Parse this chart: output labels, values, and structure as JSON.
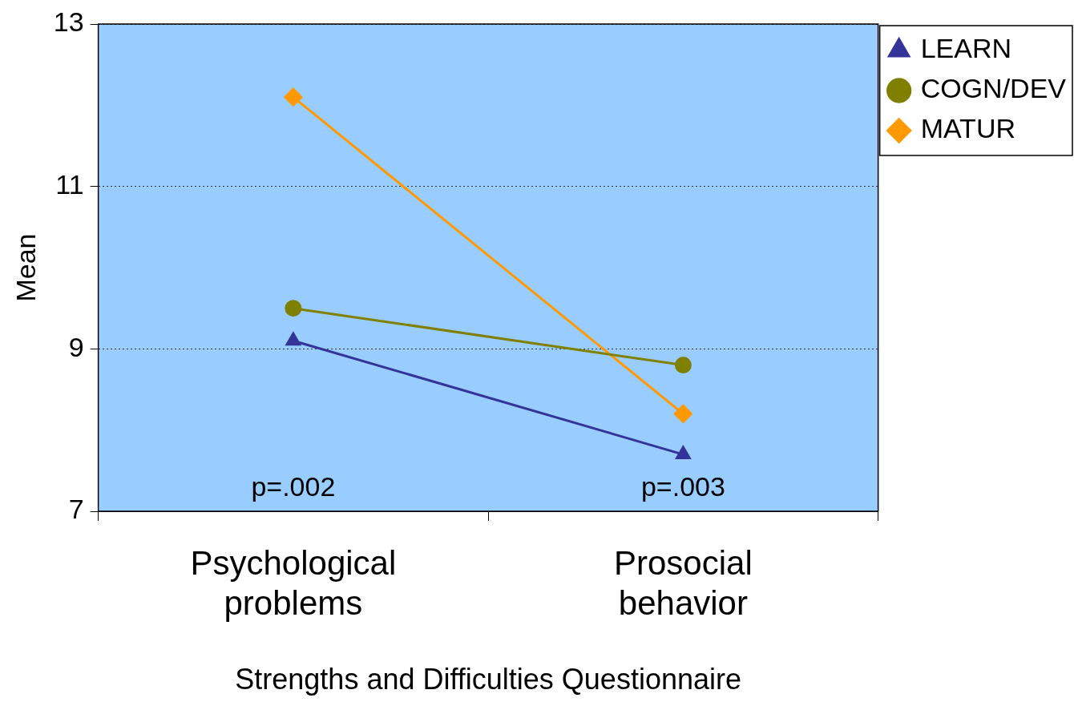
{
  "chart_data": {
    "type": "line",
    "xlabel": "Strengths and Difficulties Questionnaire",
    "ylabel": "Mean",
    "categories": [
      "Psychological problems",
      "Prosocial behavior"
    ],
    "series": [
      {
        "name": "LEARN",
        "color": "#333399",
        "marker": "triangle",
        "values": [
          9.1,
          7.7
        ]
      },
      {
        "name": "COGN/DEV",
        "color": "#808000",
        "marker": "circle",
        "values": [
          9.5,
          8.8
        ]
      },
      {
        "name": "MATUR",
        "color": "#ff9900",
        "marker": "diamond",
        "values": [
          12.1,
          8.2
        ]
      }
    ],
    "ylim": [
      7,
      13
    ],
    "yticks": [
      7,
      9,
      11,
      13
    ],
    "grid": "y",
    "legend": "top right",
    "line_style": "solid",
    "annotations": [
      "p=.002",
      "p=.003"
    ]
  }
}
